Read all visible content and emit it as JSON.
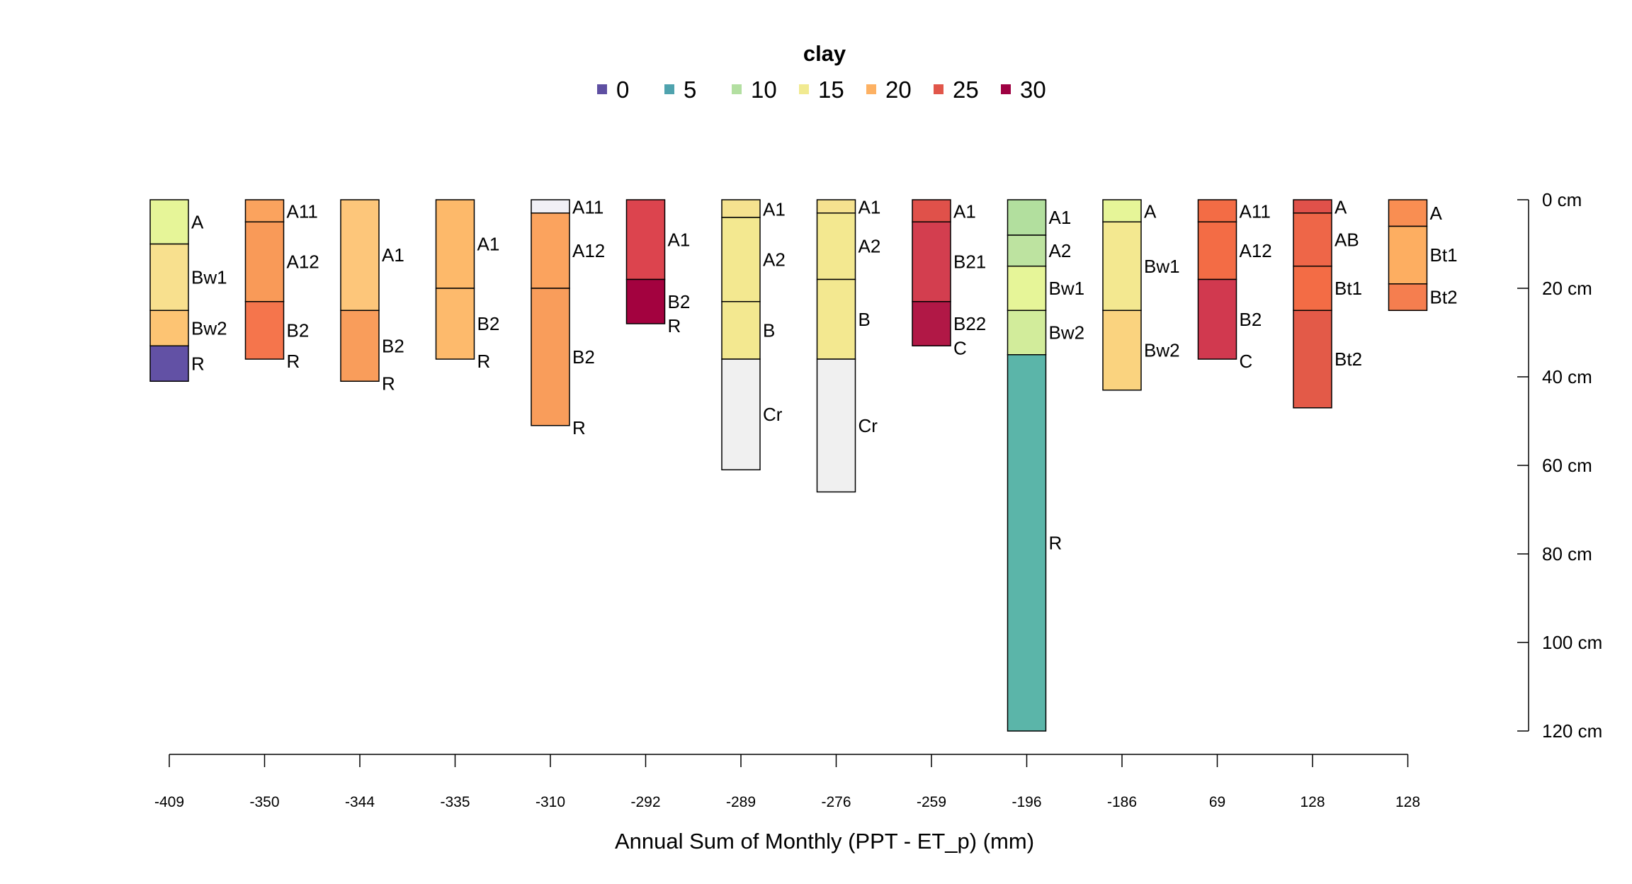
{
  "chart_data": {
    "type": "soil-profile",
    "legend": {
      "title": "clay",
      "entries": [
        {
          "label": "0",
          "color": "#5E4FA2"
        },
        {
          "label": "5",
          "color": "#4FA3AE"
        },
        {
          "label": "10",
          "color": "#B3DFA1"
        },
        {
          "label": "15",
          "color": "#F1EA91"
        },
        {
          "label": "20",
          "color": "#FDB163"
        },
        {
          "label": "25",
          "color": "#E1564A"
        },
        {
          "label": "30",
          "color": "#9E0142"
        }
      ]
    },
    "depth_axis": {
      "ticks": [
        {
          "value": 0,
          "label": "0 cm"
        },
        {
          "value": 20,
          "label": "20 cm"
        },
        {
          "value": 40,
          "label": "40 cm"
        },
        {
          "value": 60,
          "label": "60 cm"
        },
        {
          "value": 80,
          "label": "80 cm"
        },
        {
          "value": 100,
          "label": "100 cm"
        },
        {
          "value": 120,
          "label": "120 cm"
        }
      ],
      "range": [
        0,
        120
      ]
    },
    "x_axis": {
      "label": "Annual Sum of Monthly (PPT - ET_p) (mm)",
      "tick_labels": [
        "-409",
        "-350",
        "-344",
        "-335",
        "-310",
        "-292",
        "-289",
        "-276",
        "-259",
        "-196",
        "-186",
        "69",
        "128",
        "128"
      ]
    },
    "profiles": [
      {
        "horizons": [
          {
            "name": "A",
            "top": 0,
            "bottom": 10,
            "color": "#E6F598"
          },
          {
            "name": "Bw1",
            "top": 10,
            "bottom": 25,
            "color": "#F8E08E"
          },
          {
            "name": "Bw2",
            "top": 25,
            "bottom": 33,
            "color": "#FDC473"
          },
          {
            "name": "R",
            "top": 33,
            "bottom": 41,
            "color": "#6251A5"
          }
        ]
      },
      {
        "horizons": [
          {
            "name": "A11",
            "top": 0,
            "bottom": 5,
            "color": "#FBA35E"
          },
          {
            "name": "A12",
            "top": 5,
            "bottom": 23,
            "color": "#F99A58"
          },
          {
            "name": "B2",
            "top": 23,
            "bottom": 36,
            "color": "#F5754C"
          },
          {
            "name": "R",
            "top": 36,
            "bottom": 36,
            "color": "#F5754C"
          }
        ]
      },
      {
        "horizons": [
          {
            "name": "A1",
            "top": 0,
            "bottom": 25,
            "color": "#FDC67A"
          },
          {
            "name": "B2",
            "top": 25,
            "bottom": 41,
            "color": "#F99D5B"
          },
          {
            "name": "R",
            "top": 41,
            "bottom": 41,
            "color": "#F99D5B"
          }
        ]
      },
      {
        "horizons": [
          {
            "name": "A1",
            "top": 0,
            "bottom": 20,
            "color": "#FDB96A"
          },
          {
            "name": "B2",
            "top": 20,
            "bottom": 36,
            "color": "#FDBA6C"
          },
          {
            "name": "R",
            "top": 36,
            "bottom": 36,
            "color": "#FDBA6C"
          }
        ]
      },
      {
        "horizons": [
          {
            "name": "A11",
            "top": 0,
            "bottom": 3,
            "color": "#F1F0F6"
          },
          {
            "name": "A12",
            "top": 3,
            "bottom": 20,
            "color": "#FBA35E"
          },
          {
            "name": "B2",
            "top": 20,
            "bottom": 51,
            "color": "#F99D5B"
          },
          {
            "name": "R",
            "top": 51,
            "bottom": 51,
            "color": "#F99D5B"
          }
        ]
      },
      {
        "horizons": [
          {
            "name": "A1",
            "top": 0,
            "bottom": 18,
            "color": "#DC444E"
          },
          {
            "name": "B2",
            "top": 18,
            "bottom": 28,
            "color": "#A3023F"
          },
          {
            "name": "R",
            "top": 28,
            "bottom": 28,
            "color": "#A3023F"
          }
        ]
      },
      {
        "horizons": [
          {
            "name": "A1",
            "top": 0,
            "bottom": 4,
            "color": "#F5E28F"
          },
          {
            "name": "A2",
            "top": 4,
            "bottom": 23,
            "color": "#F3E890"
          },
          {
            "name": "B",
            "top": 23,
            "bottom": 36,
            "color": "#F3E890"
          },
          {
            "name": "Cr",
            "top": 36,
            "bottom": 61,
            "color": "#F0F0F0"
          }
        ]
      },
      {
        "horizons": [
          {
            "name": "A1",
            "top": 0,
            "bottom": 3,
            "color": "#F5E28F"
          },
          {
            "name": "A2",
            "top": 3,
            "bottom": 18,
            "color": "#F3E890"
          },
          {
            "name": "B",
            "top": 18,
            "bottom": 36,
            "color": "#F3E890"
          },
          {
            "name": "Cr",
            "top": 36,
            "bottom": 66,
            "color": "#F0F0F0"
          }
        ]
      },
      {
        "horizons": [
          {
            "name": "A1",
            "top": 0,
            "bottom": 5,
            "color": "#E0514A"
          },
          {
            "name": "B21",
            "top": 5,
            "bottom": 23,
            "color": "#D33E4F"
          },
          {
            "name": "B22",
            "top": 23,
            "bottom": 33,
            "color": "#B11846"
          },
          {
            "name": "C",
            "top": 33,
            "bottom": 33,
            "color": "#B11846"
          }
        ]
      },
      {
        "horizons": [
          {
            "name": "A1",
            "top": 0,
            "bottom": 8,
            "color": "#B2DF9E"
          },
          {
            "name": "A2",
            "top": 8,
            "bottom": 15,
            "color": "#BDE3A0"
          },
          {
            "name": "Bw1",
            "top": 15,
            "bottom": 25,
            "color": "#E6F598"
          },
          {
            "name": "Bw2",
            "top": 25,
            "bottom": 35,
            "color": "#D2EC9B"
          },
          {
            "name": "R",
            "top": 35,
            "bottom": 120,
            "color": "#5BB5A9"
          }
        ]
      },
      {
        "horizons": [
          {
            "name": "A",
            "top": 0,
            "bottom": 5,
            "color": "#E6F598"
          },
          {
            "name": "Bw1",
            "top": 5,
            "bottom": 25,
            "color": "#F3E890"
          },
          {
            "name": "Bw2",
            "top": 25,
            "bottom": 43,
            "color": "#FAD37F"
          }
        ]
      },
      {
        "horizons": [
          {
            "name": "A11",
            "top": 0,
            "bottom": 5,
            "color": "#F36C45"
          },
          {
            "name": "A12",
            "top": 5,
            "bottom": 18,
            "color": "#F36C45"
          },
          {
            "name": "B2",
            "top": 18,
            "bottom": 36,
            "color": "#D1394F"
          },
          {
            "name": "C",
            "top": 36,
            "bottom": 36,
            "color": "#D1394F"
          }
        ]
      },
      {
        "horizons": [
          {
            "name": "A",
            "top": 0,
            "bottom": 3,
            "color": "#E0514A"
          },
          {
            "name": "AB",
            "top": 3,
            "bottom": 15,
            "color": "#EE6648"
          },
          {
            "name": "Bt1",
            "top": 15,
            "bottom": 25,
            "color": "#F36C45"
          },
          {
            "name": "Bt2",
            "top": 25,
            "bottom": 47,
            "color": "#E35A48"
          }
        ]
      },
      {
        "horizons": [
          {
            "name": "A",
            "top": 0,
            "bottom": 6,
            "color": "#F98E52"
          },
          {
            "name": "Bt1",
            "top": 6,
            "bottom": 19,
            "color": "#FDAE61"
          },
          {
            "name": "Bt2",
            "top": 19,
            "bottom": 25,
            "color": "#F57E4F"
          }
        ]
      }
    ]
  }
}
